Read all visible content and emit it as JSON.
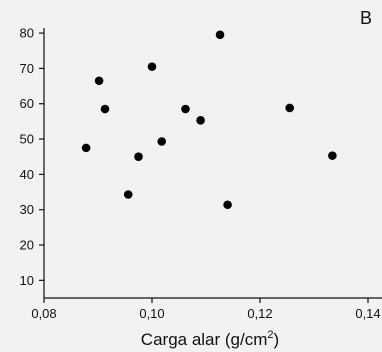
{
  "chart_data": {
    "type": "scatter",
    "panel_label": "B",
    "xlabel": "Carga alar (g/cm",
    "xlabel_sup": "2",
    "xlabel_end": ")",
    "ylabel": "",
    "xlim": [
      0.08,
      0.14
    ],
    "ylim": [
      5,
      82
    ],
    "xticks": [
      {
        "value": 0.08,
        "label": "0,08"
      },
      {
        "value": 0.1,
        "label": "0,10"
      },
      {
        "value": 0.12,
        "label": "0,12"
      },
      {
        "value": 0.14,
        "label": "0,14"
      }
    ],
    "yticks": [
      {
        "value": 10,
        "label": "10"
      },
      {
        "value": 20,
        "label": "20"
      },
      {
        "value": 30,
        "label": "30"
      },
      {
        "value": 40,
        "label": "40"
      },
      {
        "value": 50,
        "label": "50"
      },
      {
        "value": 60,
        "label": "60"
      },
      {
        "value": 70,
        "label": "70"
      },
      {
        "value": 80,
        "label": "80"
      }
    ],
    "grid": false,
    "points": [
      {
        "x": 0.0878,
        "y": 47.5
      },
      {
        "x": 0.0902,
        "y": 66.5
      },
      {
        "x": 0.0913,
        "y": 58.5
      },
      {
        "x": 0.0956,
        "y": 34.3
      },
      {
        "x": 0.0975,
        "y": 45.0
      },
      {
        "x": 0.1,
        "y": 70.5
      },
      {
        "x": 0.1018,
        "y": 49.3
      },
      {
        "x": 0.1062,
        "y": 58.5
      },
      {
        "x": 0.109,
        "y": 55.3
      },
      {
        "x": 0.1126,
        "y": 79.5
      },
      {
        "x": 0.114,
        "y": 31.4
      },
      {
        "x": 0.1255,
        "y": 58.8
      },
      {
        "x": 0.1334,
        "y": 45.3
      }
    ],
    "colors": {
      "point": "#000000",
      "axis": "#111111"
    }
  }
}
